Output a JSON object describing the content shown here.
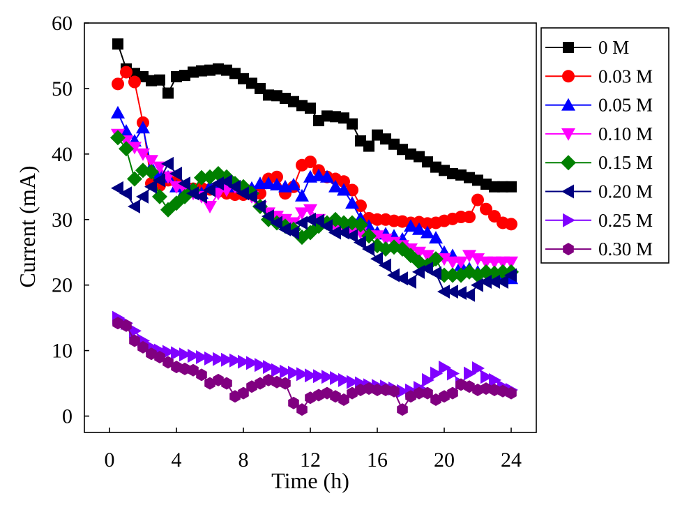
{
  "chart_data": {
    "type": "line",
    "title": "",
    "xlabel": "Time (h)",
    "ylabel": "Current (mA)",
    "xlim": [
      -1.5,
      25.5
    ],
    "ylim": [
      -2.5,
      60
    ],
    "xticks": [
      0,
      4,
      8,
      12,
      16,
      20,
      24
    ],
    "yticks": [
      0,
      10,
      20,
      30,
      40,
      50,
      60
    ],
    "grid": false,
    "legend_position": "right-outside-top",
    "series": [
      {
        "name": "0 M",
        "color": "#000000",
        "marker": "square",
        "x": [
          0.5,
          1,
          1.5,
          2,
          2.5,
          3,
          3.5,
          4,
          4.5,
          5,
          5.5,
          6,
          6.5,
          7,
          7.5,
          8,
          8.5,
          9,
          9.5,
          10,
          10.5,
          11,
          11.5,
          12,
          12.5,
          13,
          13.5,
          14,
          14.5,
          15,
          15.5,
          16,
          16.5,
          17,
          17.5,
          18,
          18.5,
          19,
          19.5,
          20,
          20.5,
          21,
          21.5,
          22,
          22.5,
          23,
          23.5,
          24
        ],
        "y": [
          56.8,
          53.0,
          52.3,
          51.8,
          51.2,
          51.3,
          49.3,
          51.8,
          52.0,
          52.5,
          52.7,
          52.8,
          53.0,
          52.8,
          52.3,
          51.5,
          50.8,
          50.0,
          49.0,
          48.9,
          48.5,
          48.0,
          47.4,
          47.0,
          45.1,
          45.8,
          45.7,
          45.5,
          44.6,
          42.0,
          41.2,
          42.9,
          42.3,
          41.5,
          40.7,
          40.0,
          39.6,
          38.8,
          38.0,
          37.5,
          37.0,
          36.8,
          36.4,
          36.0,
          35.4,
          35.0,
          35.0,
          35.0
        ]
      },
      {
        "name": "0.03 M",
        "color": "#ff0000",
        "marker": "circle",
        "x": [
          0.5,
          1,
          1.5,
          2,
          2.5,
          3,
          3.5,
          4,
          4.5,
          5,
          5.5,
          6,
          6.5,
          7,
          7.5,
          8,
          8.5,
          9,
          9.5,
          10,
          10.5,
          11,
          11.5,
          12,
          12.5,
          13,
          13.5,
          14,
          14.5,
          15,
          15.5,
          16,
          16.5,
          17,
          17.5,
          18,
          18.5,
          19,
          19.5,
          20,
          20.5,
          21,
          21.5,
          22,
          22.5,
          23,
          23.5,
          24
        ],
        "y": [
          50.7,
          52.5,
          51.0,
          44.8,
          35.5,
          35.2,
          36.0,
          35.8,
          35.0,
          34.7,
          34.8,
          34.6,
          34.3,
          34.0,
          33.8,
          33.8,
          33.9,
          34.0,
          36.2,
          36.5,
          34.0,
          35.0,
          38.3,
          38.8,
          37.5,
          36.5,
          36.2,
          35.8,
          34.5,
          32.1,
          30.2,
          30.0,
          30.0,
          29.8,
          29.7,
          29.5,
          29.6,
          29.4,
          29.5,
          29.8,
          30.1,
          30.4,
          30.4,
          33.0,
          31.6,
          30.5,
          29.5,
          29.3
        ]
      },
      {
        "name": "0.05 M",
        "color": "#0000ff",
        "marker": "triangle-up",
        "x": [
          0.5,
          1,
          1.5,
          2,
          2.5,
          3,
          3.5,
          4,
          4.5,
          5,
          5.5,
          6,
          6.5,
          7,
          7.5,
          8,
          8.5,
          9,
          9.5,
          10,
          10.5,
          11,
          11.5,
          12,
          12.5,
          13,
          13.5,
          14,
          14.5,
          15,
          15.5,
          16,
          16.5,
          17,
          17.5,
          18,
          18.5,
          19,
          19.5,
          20,
          20.5,
          21,
          21.5,
          22,
          22.5,
          23,
          23.5,
          24
        ],
        "y": [
          46.3,
          43.5,
          42.0,
          44.0,
          38.0,
          37.0,
          36.5,
          35.0,
          34.5,
          34.2,
          34.0,
          35.0,
          35.3,
          35.3,
          35.0,
          35.0,
          34.8,
          35.5,
          35.5,
          35.3,
          35.0,
          35.3,
          33.6,
          36.5,
          36.7,
          36.5,
          35.0,
          34.5,
          32.5,
          30.2,
          29.0,
          28.0,
          27.8,
          27.5,
          27.0,
          29.0,
          28.5,
          28.0,
          27.2,
          25.0,
          24.5,
          23.0,
          22.5,
          22.0,
          22.3,
          21.5,
          21.0,
          21.0
        ]
      },
      {
        "name": "0.10 M",
        "color": "#ff00ff",
        "marker": "triangle-down",
        "x": [
          0.5,
          1,
          1.5,
          2,
          2.5,
          3,
          3.5,
          4,
          4.5,
          5,
          5.5,
          6,
          6.5,
          7,
          7.5,
          8,
          8.5,
          9,
          9.5,
          10,
          10.5,
          11,
          11.5,
          12,
          12.5,
          13,
          13.5,
          14,
          14.5,
          15,
          15.5,
          16,
          16.5,
          17,
          17.5,
          18,
          18.5,
          19,
          19.5,
          20,
          20.5,
          21,
          21.5,
          22,
          22.5,
          23,
          23.5,
          24
        ],
        "y": [
          43.0,
          42.0,
          41.0,
          40.0,
          39.0,
          38.0,
          36.5,
          35.0,
          34.5,
          34.0,
          33.5,
          32.0,
          34.0,
          34.5,
          35.0,
          34.5,
          33.5,
          32.0,
          31.0,
          30.5,
          30.0,
          29.5,
          31.0,
          31.5,
          30.0,
          29.5,
          29.0,
          28.5,
          28.0,
          28.0,
          27.5,
          27.5,
          27.0,
          26.5,
          26.0,
          25.5,
          25.0,
          24.5,
          24.0,
          24.0,
          23.5,
          23.5,
          24.5,
          24.0,
          23.5,
          23.5,
          23.5,
          23.5
        ]
      },
      {
        "name": "0.15 M",
        "color": "#008000",
        "marker": "diamond",
        "x": [
          0.5,
          1,
          1.5,
          2,
          2.5,
          3,
          3.5,
          4,
          4.5,
          5,
          5.5,
          6,
          6.5,
          7,
          7.5,
          8,
          8.5,
          9,
          9.5,
          10,
          10.5,
          11,
          11.5,
          12,
          12.5,
          13,
          13.5,
          14,
          14.5,
          15,
          15.5,
          16,
          16.5,
          17,
          17.5,
          18,
          18.5,
          19,
          19.5,
          20,
          20.5,
          21,
          21.5,
          22,
          22.5,
          23,
          23.5,
          24
        ],
        "y": [
          42.5,
          40.8,
          36.2,
          37.5,
          37.3,
          33.5,
          31.5,
          32.5,
          33.5,
          34.5,
          36.4,
          36.5,
          37.0,
          36.5,
          35.5,
          35.0,
          34.0,
          32.0,
          30.0,
          29.5,
          29.0,
          28.5,
          27.3,
          28.0,
          29.0,
          29.5,
          30.0,
          29.5,
          29.5,
          29.2,
          27.5,
          26.0,
          25.5,
          25.8,
          25.5,
          24.5,
          23.5,
          23.0,
          24.0,
          21.5,
          21.5,
          21.5,
          22.0,
          21.5,
          22.0,
          21.8,
          22.0,
          22.0
        ]
      },
      {
        "name": "0.20 M",
        "color": "#000080",
        "marker": "triangle-left",
        "x": [
          0.5,
          1,
          1.5,
          2,
          2.5,
          3,
          3.5,
          4,
          4.5,
          5,
          5.5,
          6,
          6.5,
          7,
          7.5,
          8,
          8.5,
          9,
          9.5,
          10,
          10.5,
          11,
          11.5,
          12,
          12.5,
          13,
          13.5,
          14,
          14.5,
          15,
          15.5,
          16,
          16.5,
          17,
          17.5,
          18,
          18.5,
          19,
          19.5,
          20,
          20.5,
          21,
          21.5,
          22,
          22.5,
          23,
          23.5,
          24
        ],
        "y": [
          34.8,
          34.0,
          32.0,
          33.5,
          35.0,
          36.0,
          38.5,
          37.0,
          35.5,
          34.0,
          33.5,
          34.5,
          35.5,
          35.8,
          35.0,
          34.0,
          33.5,
          32.0,
          30.5,
          29.5,
          28.5,
          28.0,
          29.5,
          30.0,
          29.8,
          29.0,
          28.0,
          28.0,
          27.5,
          26.5,
          25.5,
          24.0,
          23.0,
          21.5,
          21.0,
          20.5,
          22.0,
          22.5,
          21.8,
          19.0,
          19.0,
          18.8,
          18.5,
          20.0,
          20.5,
          20.5,
          20.5,
          21.5
        ]
      },
      {
        "name": "0.25 M",
        "color": "#8000ff",
        "marker": "triangle-right",
        "x": [
          0.5,
          1,
          1.5,
          2,
          2.5,
          3,
          3.5,
          4,
          4.5,
          5,
          5.5,
          6,
          6.5,
          7,
          7.5,
          8,
          8.5,
          9,
          9.5,
          10,
          10.5,
          11,
          11.5,
          12,
          12.5,
          13,
          13.5,
          14,
          14.5,
          15,
          15.5,
          16,
          16.5,
          17,
          17.5,
          18,
          18.5,
          19,
          19.5,
          20,
          20.5,
          21,
          21.5,
          22,
          22.5,
          23,
          23.5,
          24
        ],
        "y": [
          15.0,
          14.2,
          13.0,
          11.5,
          10.5,
          10.0,
          9.8,
          9.6,
          9.4,
          9.2,
          9.0,
          8.8,
          8.7,
          8.6,
          8.5,
          8.3,
          8.1,
          7.8,
          7.5,
          7.0,
          6.8,
          6.6,
          6.4,
          6.2,
          6.1,
          6.0,
          5.8,
          5.5,
          5.2,
          5.0,
          4.7,
          4.6,
          4.5,
          4.2,
          3.8,
          3.9,
          4.3,
          5.5,
          6.5,
          7.4,
          6.5,
          5.0,
          6.5,
          7.3,
          6.0,
          5.5,
          4.5,
          4.0
        ]
      },
      {
        "name": "0.30 M",
        "color": "#800080",
        "marker": "hexagon",
        "x": [
          0.5,
          1,
          1.5,
          2,
          2.5,
          3,
          3.5,
          4,
          4.5,
          5,
          5.5,
          6,
          6.5,
          7,
          7.5,
          8,
          8.5,
          9,
          9.5,
          10,
          10.5,
          11,
          11.5,
          12,
          12.5,
          13,
          13.5,
          14,
          14.5,
          15,
          15.5,
          16,
          16.5,
          17,
          17.5,
          18,
          18.5,
          19,
          19.5,
          20,
          20.5,
          21,
          21.5,
          22,
          22.5,
          23,
          23.5,
          24
        ],
        "y": [
          14.2,
          13.8,
          11.5,
          10.5,
          9.5,
          9.0,
          8.2,
          7.5,
          7.2,
          7.0,
          6.3,
          5.0,
          5.5,
          5.0,
          3.0,
          3.5,
          4.5,
          5.0,
          5.5,
          5.2,
          5.0,
          2.0,
          1.0,
          2.8,
          3.2,
          3.5,
          3.0,
          2.5,
          3.5,
          4.0,
          4.2,
          4.0,
          4.0,
          3.8,
          1.0,
          3.0,
          3.5,
          3.5,
          2.5,
          3.0,
          3.5,
          4.8,
          4.5,
          4.0,
          4.2,
          4.0,
          3.8,
          3.5
        ]
      }
    ]
  }
}
